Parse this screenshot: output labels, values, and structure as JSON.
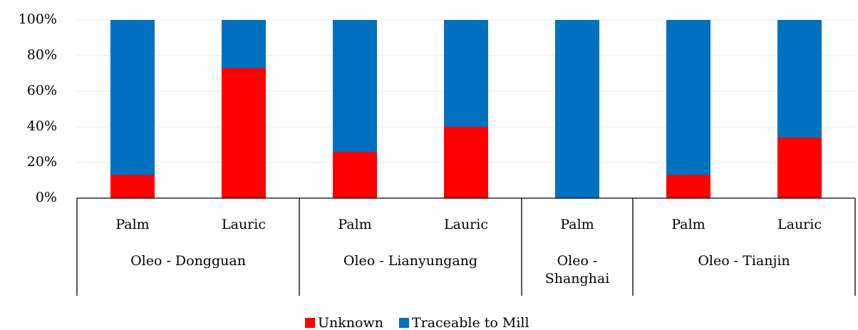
{
  "chart_data": {
    "type": "stacked_bar",
    "groups": [
      {
        "name": "Oleo - Dongguan",
        "categories": [
          "Palm",
          "Lauric"
        ]
      },
      {
        "name": "Oleo - Lianyungang",
        "categories": [
          "Palm",
          "Lauric"
        ]
      },
      {
        "name": "Oleo - Shanghai",
        "categories": [
          "Palm"
        ]
      },
      {
        "name": "Oleo - Tianjin",
        "categories": [
          "Palm",
          "Lauric"
        ]
      }
    ],
    "series": [
      {
        "name": "Unknown",
        "color": "#ff0000",
        "values": [
          13,
          73,
          26,
          40,
          0,
          13,
          34
        ]
      },
      {
        "name": "Traceable to Mill",
        "color": "#0070c0",
        "values": [
          87,
          27,
          74,
          60,
          100,
          87,
          66
        ]
      }
    ],
    "ylim": [
      0,
      100
    ],
    "yticks": [
      {
        "value": 0,
        "label": "0%"
      },
      {
        "value": 20,
        "label": "20%"
      },
      {
        "value": 40,
        "label": "40%"
      },
      {
        "value": 60,
        "label": "60%"
      },
      {
        "value": 80,
        "label": "80%"
      },
      {
        "value": 100,
        "label": "100%"
      }
    ],
    "grid": true,
    "legend": "bottom"
  }
}
